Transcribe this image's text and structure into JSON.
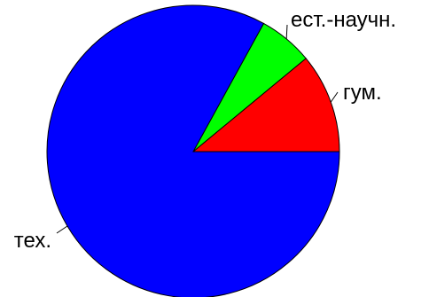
{
  "chart_data": {
    "type": "pie",
    "title": "",
    "categories": [
      "гум.",
      "ест.-научн.",
      "тех."
    ],
    "values": [
      11,
      6,
      83
    ],
    "colors": [
      "#ff0000",
      "#00ff00",
      "#0000ff"
    ],
    "start_direction": "east",
    "rotation": "counterclockwise",
    "legend": "none",
    "slice_labels": [
      "гум.",
      "ест.-научн.",
      "тех."
    ]
  }
}
